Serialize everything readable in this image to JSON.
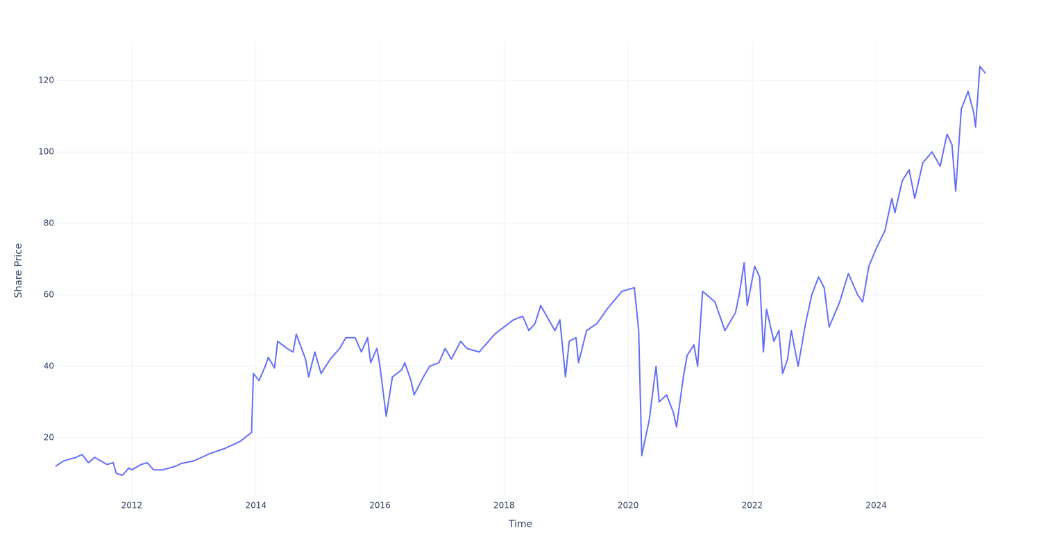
{
  "chart_data": {
    "type": "line",
    "xlabel": "Time",
    "ylabel": "Share Price",
    "xlim": [
      2010.77,
      2025.76
    ],
    "xticks": [
      2012,
      2014,
      2016,
      2018,
      2020,
      2022,
      2024
    ],
    "ylim": [
      2.7,
      130.9
    ],
    "yticks": [
      20,
      40,
      60,
      80,
      100,
      120
    ],
    "grid": true,
    "series": [
      {
        "name": "Share Price",
        "color": "#636efa",
        "x": [
          2010.77,
          2010.9,
          2011.0,
          2011.1,
          2011.2,
          2011.3,
          2011.4,
          2011.5,
          2011.6,
          2011.7,
          2011.75,
          2011.85,
          2011.95,
          2012.0,
          2012.15,
          2012.25,
          2012.35,
          2012.5,
          2012.6,
          2012.7,
          2012.8,
          2013.0,
          2013.25,
          2013.5,
          2013.75,
          2013.93,
          2013.96,
          2014.05,
          2014.15,
          2014.2,
          2014.3,
          2014.35,
          2014.5,
          2014.6,
          2014.65,
          2014.8,
          2014.85,
          2014.95,
          2015.05,
          2015.2,
          2015.35,
          2015.45,
          2015.6,
          2015.7,
          2015.8,
          2015.85,
          2015.9,
          2015.95,
          2016.0,
          2016.1,
          2016.2,
          2016.35,
          2016.4,
          2016.5,
          2016.55,
          2016.7,
          2016.8,
          2016.95,
          2017.05,
          2017.15,
          2017.3,
          2017.4,
          2017.6,
          2017.75,
          2017.85,
          2018.0,
          2018.15,
          2018.3,
          2018.4,
          2018.5,
          2018.59,
          2018.82,
          2018.9,
          2018.99,
          2019.05,
          2019.16,
          2019.2,
          2019.33,
          2019.5,
          2019.66,
          2019.9,
          2020.1,
          2020.17,
          2020.22,
          2020.34,
          2020.45,
          2020.5,
          2020.62,
          2020.73,
          2020.78,
          2020.89,
          2020.95,
          2021.06,
          2021.12,
          2021.2,
          2021.4,
          2021.56,
          2021.73,
          2021.79,
          2021.87,
          2021.92,
          2022.04,
          2022.12,
          2022.18,
          2022.23,
          2022.35,
          2022.43,
          2022.49,
          2022.57,
          2022.63,
          2022.74,
          2022.86,
          2022.96,
          2023.07,
          2023.16,
          2023.24,
          2023.41,
          2023.55,
          2023.7,
          2023.78,
          2023.88,
          2024.0,
          2024.14,
          2024.25,
          2024.3,
          2024.42,
          2024.53,
          2024.62,
          2024.75,
          2024.9,
          2025.03,
          2025.14,
          2025.22,
          2025.28,
          2025.37,
          2025.48,
          2025.57,
          2025.6,
          2025.67,
          2025.76
        ],
        "values": [
          12,
          13.5,
          14,
          14.5,
          15.3,
          13,
          14.5,
          13.5,
          12.5,
          13,
          10,
          9.5,
          11.5,
          11,
          12.5,
          13,
          11,
          11,
          11.5,
          12,
          12.8,
          13.5,
          15.5,
          17,
          19,
          21.5,
          38,
          36,
          40,
          42.5,
          39.5,
          47,
          45,
          44,
          49,
          42,
          37,
          44,
          38,
          42,
          45,
          48,
          48,
          44,
          48,
          41,
          43,
          45,
          40,
          26,
          37,
          39,
          41,
          36,
          32,
          37,
          40,
          41,
          45,
          42,
          47,
          45,
          44,
          47,
          49,
          51,
          53,
          54,
          50,
          52,
          57,
          50,
          53,
          37,
          47,
          48,
          41,
          50,
          52,
          56,
          61,
          62,
          50,
          15,
          25,
          40,
          30,
          32,
          27,
          23,
          37,
          43,
          46,
          40,
          61,
          58,
          50,
          55,
          60,
          69,
          57,
          68,
          65,
          44,
          56,
          47,
          50,
          38,
          42,
          50,
          40,
          52,
          60,
          65,
          62,
          51,
          58,
          66,
          60,
          58,
          68,
          73,
          78,
          87,
          83,
          92,
          95,
          87,
          97,
          100,
          96,
          105,
          102,
          89,
          112,
          117,
          111,
          107,
          124,
          122
        ]
      }
    ]
  }
}
